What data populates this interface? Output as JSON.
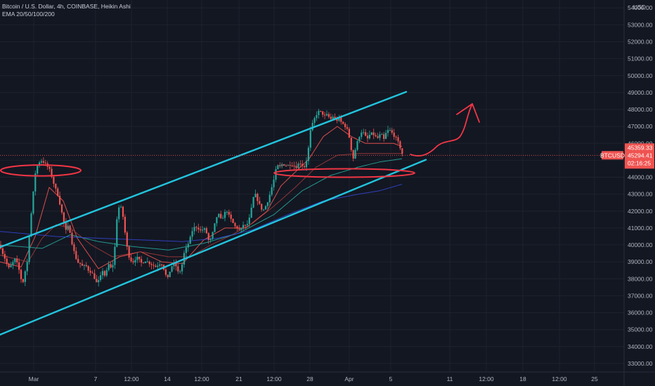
{
  "header": {
    "title": "Bitcoin / U.S. Dollar, 4h, COINBASE, Heikin Ashi",
    "indicator": "EMA 20/50/100/200"
  },
  "colors": {
    "background": "#131722",
    "up": "#26a69a",
    "down": "#ef5350",
    "channel": "#22c4dd",
    "drawing": "#f23645",
    "ema20": "#ef5350",
    "ema50": "#9c3a3a",
    "ema100": "#26a69a",
    "ema200": "#3344cc"
  },
  "chart_data": {
    "type": "candlestick",
    "y_axis_unit": "USD",
    "ylim": [
      32500,
      54300
    ],
    "y_ticks": [
      33000,
      34000,
      35000,
      36000,
      37000,
      38000,
      39000,
      40000,
      41000,
      42000,
      43000,
      44000,
      45000,
      46000,
      47000,
      48000,
      49000,
      50000,
      51000,
      52000,
      53000,
      54000
    ],
    "y_tick_labels": [
      "33000.00",
      "34000.00",
      "35000.00",
      "36000.00",
      "37000.00",
      "38000.00",
      "39000.00",
      "40000.00",
      "41000.00",
      "42000.00",
      "43000.00",
      "44000.00",
      "45000.00",
      "46000.00",
      "47000.00",
      "48000.00",
      "49000.00",
      "50000.00",
      "51000.00",
      "52000.00",
      "53000.00",
      "54000.00"
    ],
    "x_ticks": [
      "Mar",
      "7",
      "12:00",
      "14",
      "12:00",
      "21",
      "12:00",
      "28",
      "Apr",
      "5",
      "11",
      "12:00",
      "18",
      "12:00",
      "25"
    ],
    "symbol_tag": "BTCUSD",
    "price_tags": [
      "45359.33",
      "45294.41",
      "02:16:25"
    ],
    "last_price": 45294.41,
    "grid": true,
    "legend_position": "top-left",
    "series": [
      {
        "kind": "ohlc",
        "anchors": [
          [
            0,
            40000
          ],
          [
            4,
            39500
          ],
          [
            8,
            39100
          ],
          [
            12,
            38600
          ],
          [
            16,
            38800
          ],
          [
            22,
            39200
          ],
          [
            28,
            38400
          ],
          [
            32,
            37600
          ],
          [
            35,
            38400
          ],
          [
            38,
            38600
          ],
          [
            42,
            40800
          ],
          [
            46,
            42500
          ],
          [
            50,
            44200
          ],
          [
            54,
            44800
          ],
          [
            58,
            45000
          ],
          [
            62,
            44900
          ],
          [
            66,
            44700
          ],
          [
            70,
            44500
          ],
          [
            74,
            44000
          ],
          [
            78,
            43400
          ],
          [
            82,
            43000
          ],
          [
            86,
            42300
          ],
          [
            90,
            41500
          ],
          [
            94,
            40800
          ],
          [
            98,
            41200
          ],
          [
            102,
            40200
          ],
          [
            106,
            39500
          ],
          [
            110,
            39000
          ],
          [
            114,
            38900
          ],
          [
            118,
            38700
          ],
          [
            122,
            38800
          ],
          [
            126,
            38500
          ],
          [
            130,
            38400
          ],
          [
            134,
            38100
          ],
          [
            138,
            37700
          ],
          [
            142,
            38000
          ],
          [
            146,
            38500
          ],
          [
            150,
            38100
          ],
          [
            154,
            38900
          ],
          [
            158,
            38600
          ],
          [
            162,
            39000
          ],
          [
            166,
            41500
          ],
          [
            170,
            42400
          ],
          [
            174,
            42000
          ],
          [
            178,
            40700
          ],
          [
            182,
            39500
          ],
          [
            186,
            39100
          ],
          [
            190,
            39000
          ],
          [
            194,
            39300
          ],
          [
            198,
            39100
          ],
          [
            202,
            38900
          ],
          [
            206,
            39100
          ],
          [
            210,
            39000
          ],
          [
            214,
            38900
          ],
          [
            218,
            38800
          ],
          [
            222,
            38700
          ],
          [
            226,
            38900
          ],
          [
            230,
            38900
          ],
          [
            234,
            38500
          ],
          [
            238,
            37900
          ],
          [
            242,
            38500
          ],
          [
            246,
            38900
          ],
          [
            250,
            38800
          ],
          [
            254,
            38300
          ],
          [
            258,
            38600
          ],
          [
            262,
            39500
          ],
          [
            266,
            39900
          ],
          [
            270,
            40300
          ],
          [
            274,
            40900
          ],
          [
            278,
            41100
          ],
          [
            282,
            41000
          ],
          [
            286,
            40800
          ],
          [
            290,
            41000
          ],
          [
            294,
            40700
          ],
          [
            298,
            40100
          ],
          [
            302,
            40600
          ],
          [
            306,
            41300
          ],
          [
            310,
            41900
          ],
          [
            314,
            41500
          ],
          [
            318,
            41700
          ],
          [
            322,
            42100
          ],
          [
            326,
            41700
          ],
          [
            330,
            41400
          ],
          [
            334,
            41100
          ],
          [
            338,
            41000
          ],
          [
            342,
            40800
          ],
          [
            346,
            41200
          ],
          [
            350,
            41100
          ],
          [
            354,
            41400
          ],
          [
            358,
            42200
          ],
          [
            362,
            43100
          ],
          [
            366,
            42700
          ],
          [
            370,
            42300
          ],
          [
            374,
            42000
          ],
          [
            378,
            42300
          ],
          [
            382,
            42700
          ],
          [
            386,
            43300
          ],
          [
            390,
            43900
          ],
          [
            394,
            44700
          ],
          [
            398,
            44600
          ],
          [
            402,
            44800
          ],
          [
            406,
            44700
          ],
          [
            410,
            44700
          ],
          [
            414,
            44800
          ],
          [
            418,
            44700
          ],
          [
            422,
            44600
          ],
          [
            426,
            44900
          ],
          [
            430,
            44700
          ],
          [
            434,
            44600
          ],
          [
            438,
            45400
          ],
          [
            442,
            46800
          ],
          [
            446,
            47300
          ],
          [
            450,
            47700
          ],
          [
            454,
            47900
          ],
          [
            458,
            47800
          ],
          [
            462,
            47600
          ],
          [
            466,
            47700
          ],
          [
            470,
            47400
          ],
          [
            474,
            47600
          ],
          [
            478,
            47300
          ],
          [
            482,
            47500
          ],
          [
            486,
            47200
          ],
          [
            490,
            47100
          ],
          [
            494,
            46800
          ],
          [
            498,
            46200
          ],
          [
            502,
            45000
          ],
          [
            506,
            45700
          ],
          [
            510,
            46300
          ],
          [
            514,
            46700
          ],
          [
            518,
            46600
          ],
          [
            522,
            46200
          ],
          [
            526,
            46500
          ],
          [
            530,
            46600
          ],
          [
            534,
            46400
          ],
          [
            538,
            46300
          ],
          [
            542,
            46600
          ],
          [
            546,
            46200
          ],
          [
            550,
            46700
          ],
          [
            554,
            46800
          ],
          [
            558,
            46600
          ],
          [
            562,
            46400
          ],
          [
            566,
            46100
          ],
          [
            570,
            45700
          ],
          [
            573,
            45294
          ]
        ]
      },
      {
        "kind": "ema",
        "name": "EMA 20",
        "color": "ema20",
        "anchors": [
          [
            0,
            39000
          ],
          [
            30,
            38700
          ],
          [
            50,
            40500
          ],
          [
            70,
            43400
          ],
          [
            90,
            42600
          ],
          [
            110,
            40400
          ],
          [
            140,
            38600
          ],
          [
            170,
            39300
          ],
          [
            200,
            39600
          ],
          [
            230,
            39000
          ],
          [
            260,
            38900
          ],
          [
            290,
            40300
          ],
          [
            320,
            41000
          ],
          [
            350,
            41000
          ],
          [
            380,
            42000
          ],
          [
            400,
            43500
          ],
          [
            420,
            44300
          ],
          [
            440,
            45100
          ],
          [
            460,
            46400
          ],
          [
            480,
            47000
          ],
          [
            500,
            46400
          ],
          [
            520,
            46000
          ],
          [
            540,
            46000
          ],
          [
            560,
            46000
          ],
          [
            573,
            45800
          ]
        ]
      },
      {
        "kind": "ema",
        "name": "EMA 50",
        "color": "ema50",
        "anchors": [
          [
            0,
            39400
          ],
          [
            40,
            39000
          ],
          [
            60,
            40400
          ],
          [
            80,
            41200
          ],
          [
            100,
            41000
          ],
          [
            130,
            40000
          ],
          [
            160,
            39300
          ],
          [
            200,
            39600
          ],
          [
            240,
            39300
          ],
          [
            270,
            39300
          ],
          [
            300,
            40000
          ],
          [
            330,
            40600
          ],
          [
            360,
            41300
          ],
          [
            390,
            42300
          ],
          [
            420,
            43400
          ],
          [
            450,
            44600
          ],
          [
            480,
            45300
          ],
          [
            510,
            45400
          ],
          [
            540,
            45400
          ],
          [
            573,
            45400
          ]
        ]
      },
      {
        "kind": "ema",
        "name": "EMA 100",
        "color": "ema100",
        "anchors": [
          [
            0,
            40000
          ],
          [
            60,
            39800
          ],
          [
            100,
            40600
          ],
          [
            140,
            40200
          ],
          [
            190,
            39900
          ],
          [
            240,
            39700
          ],
          [
            290,
            40100
          ],
          [
            340,
            40700
          ],
          [
            390,
            41800
          ],
          [
            430,
            43200
          ],
          [
            470,
            44100
          ],
          [
            510,
            44600
          ],
          [
            540,
            44900
          ],
          [
            573,
            45100
          ]
        ]
      },
      {
        "kind": "ema",
        "name": "EMA 200",
        "color": "ema200",
        "anchors": [
          [
            0,
            40800
          ],
          [
            80,
            40500
          ],
          [
            140,
            40400
          ],
          [
            200,
            40300
          ],
          [
            260,
            40200
          ],
          [
            310,
            40400
          ],
          [
            360,
            40900
          ],
          [
            410,
            41800
          ],
          [
            460,
            42600
          ],
          [
            510,
            43000
          ],
          [
            540,
            43200
          ],
          [
            573,
            43600
          ]
        ]
      }
    ],
    "annotations": [
      {
        "kind": "trendline",
        "name": "channel-upper",
        "from": [
          0,
          39870
        ],
        "to": [
          578,
          49040
        ]
      },
      {
        "kind": "trendline",
        "name": "channel-lower",
        "from": [
          0,
          34700
        ],
        "to": [
          606,
          45030
        ]
      },
      {
        "kind": "ellipse",
        "name": "resistance-ellipse",
        "center": [
          58,
          44400
        ],
        "rx": 57,
        "ry": 320
      },
      {
        "kind": "ellipse",
        "name": "support-ellipse",
        "center": [
          490,
          44250
        ],
        "rx": 100,
        "ry": 250
      },
      {
        "kind": "curve-arrow",
        "name": "projection-arrow"
      }
    ]
  }
}
